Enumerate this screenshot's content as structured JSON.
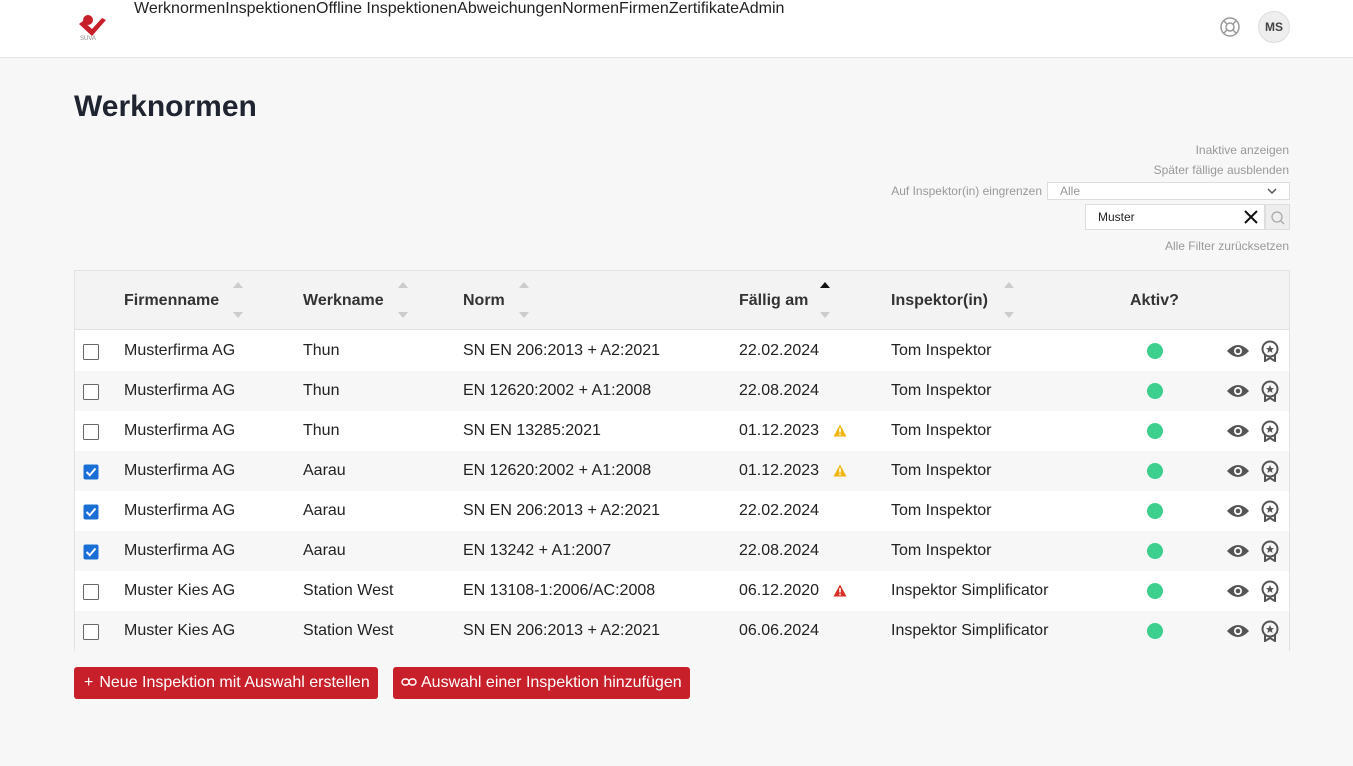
{
  "nav": {
    "items": [
      "Werknormen",
      "Inspektionen",
      "Offline Inspektionen",
      "Abweichungen",
      "Normen",
      "Firmen",
      "Zertifikate",
      "Admin"
    ],
    "active": 0,
    "avatar": "MS"
  },
  "page": {
    "title": "Werknormen"
  },
  "filters": {
    "show_inactive": "Inaktive anzeigen",
    "hide_later": "Später fällige ausblenden",
    "inspector_label": "Auf Inspektor(in) eingrenzen",
    "inspector_value": "Alle",
    "search": "Muster",
    "reset": "Alle Filter zurücksetzen"
  },
  "table": {
    "headers": [
      {
        "label": "Firmenname",
        "sortable": true,
        "sorted": false
      },
      {
        "label": "Werkname",
        "sortable": true,
        "sorted": false
      },
      {
        "label": "Norm",
        "sortable": true,
        "sorted": false
      },
      {
        "label": "Fällig am",
        "sortable": true,
        "sorted": true
      },
      {
        "label": "Inspektor(in)",
        "sortable": true,
        "sorted": false
      },
      {
        "label": "Aktiv?",
        "sortable": false,
        "sorted": false
      }
    ],
    "rows": [
      {
        "checked": false,
        "cells": [
          "Musterfirma AG",
          "Thun",
          "SN EN 206:2013 + A2:2021",
          "22.02.2024",
          "Tom Inspektor"
        ],
        "active": true
      },
      {
        "checked": false,
        "cells": [
          "Musterfirma AG",
          "Thun",
          "EN 12620:2002 + A1:2008",
          "22.08.2024",
          "Tom Inspektor"
        ],
        "active": true
      },
      {
        "checked": false,
        "cells": [
          "Musterfirma AG",
          "Thun",
          "SN EN 13285:2021",
          "01.12.2023",
          "Tom Inspektor"
        ],
        "active": true,
        "warning_color": "#f1b70e"
      },
      {
        "checked": true,
        "cells": [
          "Musterfirma AG",
          "Aarau",
          "EN 12620:2002 + A1:2008",
          "01.12.2023",
          "Tom Inspektor"
        ],
        "active": true,
        "warning_color": "#f1b70e"
      },
      {
        "checked": true,
        "cells": [
          "Musterfirma AG",
          "Aarau",
          "SN EN 206:2013 + A2:2021",
          "22.02.2024",
          "Tom Inspektor"
        ],
        "active": true
      },
      {
        "checked": true,
        "cells": [
          "Musterfirma AG",
          "Aarau",
          "EN 13242 + A1:2007",
          "22.08.2024",
          "Tom Inspektor"
        ],
        "active": true
      },
      {
        "checked": false,
        "cells": [
          "Muster Kies AG",
          "Station West",
          "EN 13108-1:2006/AC:2008",
          "06.12.2020",
          "Inspektor Simplificator"
        ],
        "active": true,
        "warning_color": "#d93025"
      },
      {
        "checked": false,
        "cells": [
          "Muster Kies AG",
          "Station West",
          "SN EN 206:2013 + A2:2021",
          "06.06.2024",
          "Inspektor Simplificator"
        ],
        "active": true
      }
    ]
  },
  "buttons": {
    "create": "Neue Inspektion mit Auswahl erstellen",
    "add": "Auswahl einer Inspektion hinzufügen"
  }
}
